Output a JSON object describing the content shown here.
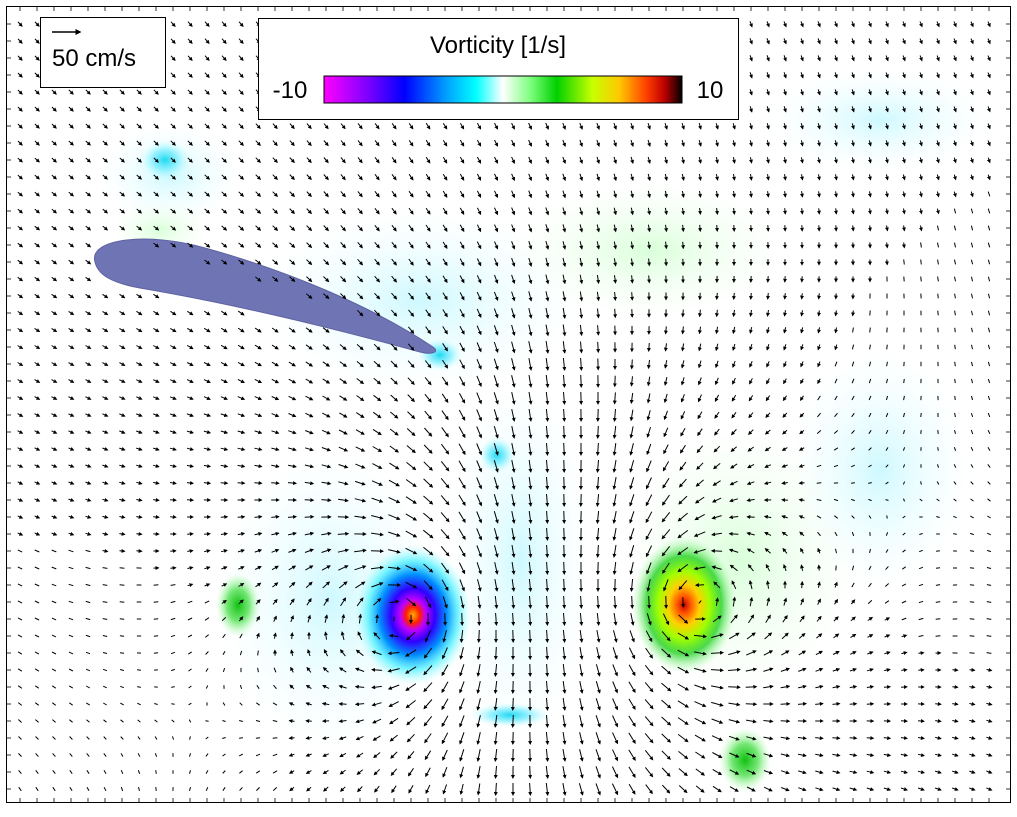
{
  "chart_data": {
    "type": "heatmap",
    "subtype": "vector-field-with-vorticity-contour",
    "colorbar": {
      "title": "Vorticity [1/s]",
      "min_label": "-10",
      "max_label": "10",
      "range": [
        -10,
        10
      ],
      "colormap_stops": [
        {
          "value": -10,
          "color": "#ff00ff"
        },
        {
          "value": -7.5,
          "color": "#7a00ff"
        },
        {
          "value": -5.5,
          "color": "#0000ff"
        },
        {
          "value": -3,
          "color": "#00aaff"
        },
        {
          "value": -1.5,
          "color": "#00ffff"
        },
        {
          "value": 0,
          "color": "#ffffff"
        },
        {
          "value": 1.5,
          "color": "#80ff80"
        },
        {
          "value": 3,
          "color": "#00d000"
        },
        {
          "value": 5,
          "color": "#c8ff00"
        },
        {
          "value": 6.5,
          "color": "#ffc800"
        },
        {
          "value": 8,
          "color": "#ff4000"
        },
        {
          "value": 9,
          "color": "#c00000"
        },
        {
          "value": 10,
          "color": "#000000"
        }
      ],
      "placement": "top-center"
    },
    "reference_vector": {
      "label": "50 cm/s",
      "magnitude_cm_s": 50,
      "placement": "top-left"
    },
    "vortices": [
      {
        "name": "clockwise",
        "sign": -1,
        "peak": -10
      },
      {
        "name": "counter-clockwise",
        "sign": 1,
        "peak": 8
      }
    ],
    "body": {
      "kind": "airfoil",
      "color": "#6f74b4"
    },
    "grid": false,
    "axes_visible": false
  }
}
